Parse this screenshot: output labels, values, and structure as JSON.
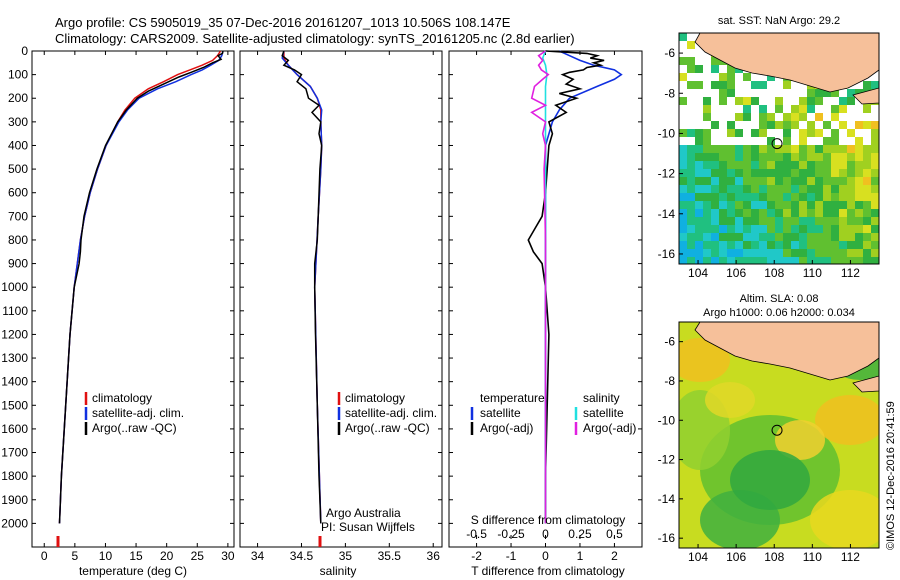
{
  "header": {
    "line1": "Argo profile: CS 5905019_35 07-Dec-2016 20161207_1013 10.506S 108.147E",
    "line2": "Climatology: CARS2009. Satellite-adjusted climatology: synTS_20161205.nc (2.8d earlier)"
  },
  "colors": {
    "climatology": "#e01010",
    "satellite": "#1030e0",
    "argo": "#000000",
    "sal_satellite": "#20e0e0",
    "sal_argo": "#e020e0",
    "land": "#f6c09a"
  },
  "chart_data": [
    {
      "id": "temperature",
      "type": "line",
      "xlabel": "temperature (deg C)",
      "ylabel": "",
      "xlim": [
        -2,
        31
      ],
      "ylim": [
        2100,
        0
      ],
      "xticks": [
        0,
        5,
        10,
        15,
        20,
        25,
        30
      ],
      "yticks": [
        0,
        100,
        200,
        300,
        400,
        500,
        600,
        700,
        800,
        900,
        1000,
        1100,
        1200,
        1300,
        1400,
        1500,
        1600,
        1700,
        1800,
        1900,
        2000
      ],
      "legend": [
        "climatology",
        "satellite-adj. clim.",
        "Argo(..raw -QC)"
      ],
      "series": [
        {
          "name": "climatology",
          "depth": [
            0,
            20,
            40,
            60,
            80,
            100,
            130,
            160,
            200,
            250,
            300,
            400,
            500,
            600,
            700,
            800,
            1000,
            1200,
            1500,
            1800,
            2000
          ],
          "values": [
            28.8,
            28.3,
            27.5,
            25.8,
            23.8,
            21.8,
            19.5,
            17.0,
            14.8,
            13.2,
            12.0,
            10.1,
            8.7,
            7.5,
            6.6,
            5.9,
            4.9,
            4.2,
            3.5,
            2.8,
            2.5
          ]
        },
        {
          "name": "satellite-adj. clim.",
          "depth": [
            0,
            20,
            40,
            60,
            80,
            100,
            130,
            160,
            200,
            250,
            300,
            400,
            500,
            600,
            700,
            800,
            1000,
            1200,
            1500,
            1800,
            2000
          ],
          "values": [
            29.2,
            29.0,
            28.5,
            27.2,
            25.8,
            24.0,
            21.5,
            18.5,
            15.5,
            13.6,
            12.2,
            10.1,
            8.7,
            7.5,
            6.6,
            5.9,
            4.9,
            4.2,
            3.5,
            2.8,
            2.5
          ]
        },
        {
          "name": "Argo(..raw -QC)",
          "depth": [
            0,
            10,
            20,
            35,
            50,
            70,
            90,
            110,
            140,
            170,
            200,
            250,
            300,
            400,
            500,
            600,
            700,
            800,
            850,
            900,
            1000,
            1200,
            1500,
            1800,
            2000
          ],
          "values": [
            29.2,
            29.1,
            28.4,
            28.9,
            27.5,
            26.0,
            24.0,
            22.0,
            19.5,
            17.0,
            15.2,
            13.4,
            12.0,
            10.0,
            8.6,
            7.4,
            6.5,
            6.0,
            5.9,
            5.7,
            4.9,
            4.2,
            3.5,
            2.8,
            2.5
          ]
        }
      ]
    },
    {
      "id": "salinity",
      "type": "line",
      "xlabel": "salinity",
      "xlim": [
        33.8,
        36.1
      ],
      "ylim": [
        2100,
        0
      ],
      "xticks": [
        34,
        34.5,
        35,
        35.5,
        36
      ],
      "legend": [
        "climatology",
        "satellite-adj. clim.",
        "Argo(..raw -QC)"
      ],
      "series": [
        {
          "name": "climatology",
          "depth": [
            0,
            30,
            60,
            100,
            150,
            200,
            250,
            300,
            400,
            500,
            700,
            1000,
            1500,
            2000
          ],
          "values": [
            34.3,
            34.3,
            34.35,
            34.45,
            34.6,
            34.68,
            34.72,
            34.72,
            34.73,
            34.72,
            34.69,
            34.65,
            34.68,
            34.72
          ]
        },
        {
          "name": "satellite-adj. clim.",
          "depth": [
            0,
            30,
            60,
            100,
            150,
            200,
            250,
            300,
            400,
            500,
            700,
            1000,
            1500,
            2000
          ],
          "values": [
            34.3,
            34.28,
            34.35,
            34.45,
            34.6,
            34.68,
            34.73,
            34.72,
            34.73,
            34.72,
            34.69,
            34.65,
            34.68,
            34.72
          ]
        },
        {
          "name": "Argo(..raw -QC)",
          "depth": [
            0,
            20,
            40,
            60,
            80,
            100,
            130,
            160,
            200,
            230,
            260,
            300,
            350,
            400,
            500,
            700,
            800,
            900,
            1000,
            1200,
            1500,
            1800,
            2000
          ],
          "values": [
            34.3,
            34.28,
            34.35,
            34.3,
            34.42,
            34.5,
            34.45,
            34.55,
            34.58,
            34.7,
            34.62,
            34.72,
            34.7,
            34.73,
            34.71,
            34.69,
            34.68,
            34.65,
            34.65,
            34.66,
            34.68,
            34.7,
            34.72
          ]
        }
      ]
    },
    {
      "id": "difference",
      "type": "line",
      "xlabel": "T difference from climatology",
      "x2label": "S difference from climatology",
      "xlim": [
        -2.8,
        2.8
      ],
      "ylim": [
        2100,
        0
      ],
      "xticks": [
        -2,
        -1,
        0,
        1,
        2
      ],
      "xticklabels": [
        "-2",
        "-1",
        "0",
        "1",
        "2"
      ],
      "x2ticks": [
        -0.5,
        -0.25,
        0,
        0.25,
        0.5
      ],
      "x2lim": [
        -0.7,
        0.7
      ],
      "legend": [
        "temperature",
        "satellite",
        "Argo(-adj)",
        "salinity",
        "satellite",
        "Argo(-adj)"
      ],
      "series": [
        {
          "name": "temperature satellite",
          "axis": "T",
          "depth": [
            0,
            20,
            40,
            60,
            80,
            100,
            120,
            150,
            200,
            250,
            300,
            400,
            500,
            800,
            2000
          ],
          "values": [
            0.4,
            0.7,
            1.0,
            1.4,
            2.0,
            2.2,
            2.0,
            1.5,
            0.7,
            0.4,
            0.2,
            0.0,
            0.0,
            0.0,
            0.0
          ]
        },
        {
          "name": "temperature Argo(-adj)",
          "axis": "T",
          "depth": [
            0,
            10,
            20,
            30,
            40,
            50,
            60,
            70,
            80,
            90,
            100,
            120,
            140,
            160,
            180,
            200,
            230,
            260,
            300,
            350,
            400,
            500,
            600,
            700,
            750,
            800,
            850,
            900,
            1000,
            1200,
            1500,
            1800,
            2000
          ],
          "values": [
            0.0,
            1.2,
            1.5,
            1.3,
            1.7,
            1.4,
            1.6,
            1.2,
            1.1,
            0.7,
            0.5,
            0.8,
            0.6,
            1.0,
            0.4,
            0.9,
            0.3,
            0.6,
            0.1,
            0.2,
            0.1,
            0.05,
            0.0,
            -0.1,
            -0.3,
            -0.5,
            -0.35,
            -0.1,
            0.0,
            0.1,
            0.05,
            0.0,
            0.0
          ]
        },
        {
          "name": "salinity satellite",
          "axis": "S",
          "depth": [
            0,
            30,
            60,
            100,
            150,
            200,
            300,
            500,
            1000,
            2000
          ],
          "values": [
            0.0,
            -0.02,
            0.0,
            0.01,
            0.0,
            0.0,
            0.0,
            0.0,
            0.0,
            0.0
          ]
        },
        {
          "name": "salinity Argo(-adj)",
          "axis": "S",
          "depth": [
            0,
            20,
            40,
            60,
            80,
            100,
            120,
            150,
            200,
            230,
            260,
            300,
            350,
            400,
            500,
            800,
            1000,
            2000
          ],
          "values": [
            0.0,
            -0.05,
            -0.02,
            -0.05,
            -0.03,
            0.02,
            -0.02,
            -0.08,
            -0.1,
            0.0,
            -0.1,
            0.0,
            -0.02,
            0.0,
            -0.01,
            0.0,
            0.0,
            0.0
          ]
        }
      ]
    },
    {
      "id": "sst_map",
      "type": "heatmap",
      "title": "sat. SST: NaN Argo: 29.2",
      "xticks": [
        104,
        106,
        108,
        110,
        112
      ],
      "yticks": [
        -6,
        -8,
        -10,
        -12,
        -14,
        -16
      ],
      "xlim": [
        103,
        113.5
      ],
      "ylim": [
        -16.5,
        -5
      ],
      "marker": {
        "lon": 108.147,
        "lat": -10.506
      }
    },
    {
      "id": "sla_map",
      "type": "heatmap",
      "title": "Altim. SLA: 0.08",
      "subtitle": "Argo h1000: 0.06 h2000: 0.034",
      "xticks": [
        104,
        106,
        108,
        110,
        112
      ],
      "yticks": [
        -6,
        -8,
        -10,
        -12,
        -14,
        -16
      ],
      "xlim": [
        103,
        113.5
      ],
      "ylim": [
        -16.5,
        -5
      ],
      "marker": {
        "lon": 108.147,
        "lat": -10.506
      }
    }
  ],
  "legend_text": {
    "clim": "climatology",
    "sat": "satellite-adj. clim.",
    "argo": "Argo(..raw -QC)",
    "d_temp": "temperature",
    "d_sal": "salinity",
    "d_sat": "satellite",
    "d_argo": "Argo(-adj)"
  },
  "attribution": {
    "org": "Argo Australia",
    "pi": "PI: Susan Wijffels"
  },
  "watermark": "©IMOS 12-Dec-2016 20:41:59"
}
